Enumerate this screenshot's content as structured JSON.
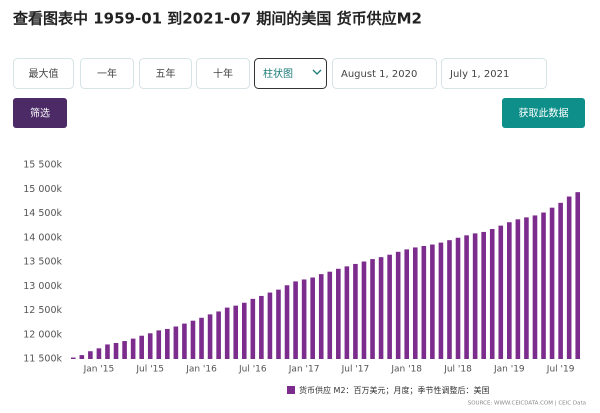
{
  "header": {
    "title": "查看图表中 1959-01 到2021-07 期间的美国 货币供应M2"
  },
  "controls": {
    "range_buttons": [
      "最大值",
      "一年",
      "五年",
      "十年"
    ],
    "chart_type": "柱状图",
    "start_date": "August 1, 2020",
    "end_date": "July 1, 2021",
    "filter_button": "筛选",
    "download_button": "获取此数据"
  },
  "chart_data": {
    "type": "bar",
    "categories": [
      null,
      null,
      null,
      "Jan '15",
      null,
      null,
      null,
      null,
      null,
      "Jul '15",
      null,
      null,
      null,
      null,
      null,
      "Jan '16",
      null,
      null,
      null,
      null,
      null,
      "Jul '16",
      null,
      null,
      null,
      null,
      null,
      "Jan '17",
      null,
      null,
      null,
      null,
      null,
      "Jul '17",
      null,
      null,
      null,
      null,
      null,
      "Jan '18",
      null,
      null,
      null,
      null,
      null,
      "Jul '18",
      null,
      null,
      null,
      null,
      null,
      "Jan '19",
      null,
      null,
      null,
      null,
      null,
      "Jul '19",
      null,
      null
    ],
    "series": [
      {
        "name": "货币供应 M2：百万美元；月度；季节性调整后：美国",
        "color": "#7b2c8c",
        "values": [
          11530,
          11580,
          11660,
          11720,
          11800,
          11830,
          11870,
          11920,
          11980,
          12030,
          12090,
          12120,
          12170,
          12230,
          12290,
          12350,
          12420,
          12480,
          12560,
          12600,
          12660,
          12740,
          12800,
          12870,
          12930,
          13020,
          13100,
          13140,
          13180,
          13250,
          13300,
          13360,
          13410,
          13460,
          13510,
          13560,
          13600,
          13650,
          13710,
          13760,
          13800,
          13830,
          13860,
          13900,
          13950,
          14000,
          14050,
          14090,
          14120,
          14180,
          14250,
          14320,
          14380,
          14420,
          14460,
          14520,
          14620,
          14720,
          14850,
          14940
        ]
      }
    ],
    "ylim": [
      11500,
      15500
    ],
    "yticks": [
      {
        "value": 11500,
        "label": "11 500k"
      },
      {
        "value": 12000,
        "label": "12 000k"
      },
      {
        "value": 12500,
        "label": "12 500k"
      },
      {
        "value": 13000,
        "label": "13 000k"
      },
      {
        "value": 13500,
        "label": "13 500k"
      },
      {
        "value": 14000,
        "label": "14 000k"
      },
      {
        "value": 14500,
        "label": "14 500k"
      },
      {
        "value": 15000,
        "label": "15 000k"
      },
      {
        "value": 15500,
        "label": "15 500k"
      }
    ],
    "source": "SOURCE: WWW.CEICDATA.COM | CEIC Data"
  }
}
